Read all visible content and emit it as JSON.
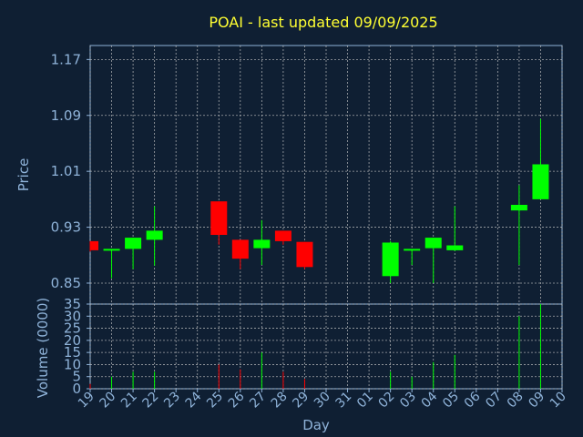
{
  "colors": {
    "background": "#0f1f33",
    "title": "#ffff33",
    "axis_text": "#8fb3d9",
    "grid": "#c8c8c8",
    "up": "#00ff00",
    "down": "#ff0000",
    "frame": "#8fb3d9"
  },
  "chart_data": [
    {
      "type": "candlestick",
      "title": "POAI - last updated 09/09/2025",
      "xlabel": "Day",
      "ylabel": "Price",
      "ylim": [
        0.82,
        1.19
      ],
      "yticks": [
        "0.85",
        "0.93",
        "1.01",
        "1.09",
        "1.17"
      ],
      "grid": true,
      "x_ticks": [
        "19",
        "20",
        "21",
        "22",
        "23",
        "24",
        "25",
        "26",
        "27",
        "28",
        "29",
        "30",
        "31",
        "01",
        "02",
        "03",
        "04",
        "05",
        "06",
        "07",
        "08",
        "09",
        "10"
      ],
      "candles": [
        {
          "x": "19",
          "open": 0.91,
          "high": 0.91,
          "low": 0.895,
          "close": 0.897
        },
        {
          "x": "20",
          "open": 0.897,
          "high": 0.899,
          "low": 0.857,
          "close": 0.899
        },
        {
          "x": "21",
          "open": 0.899,
          "high": 0.915,
          "low": 0.87,
          "close": 0.915
        },
        {
          "x": "22",
          "open": 0.912,
          "high": 0.96,
          "low": 0.875,
          "close": 0.925
        },
        {
          "x": "25",
          "open": 0.967,
          "high": 0.967,
          "low": 0.905,
          "close": 0.919
        },
        {
          "x": "26",
          "open": 0.912,
          "high": 0.912,
          "low": 0.87,
          "close": 0.885
        },
        {
          "x": "27",
          "open": 0.9,
          "high": 0.94,
          "low": 0.876,
          "close": 0.912
        },
        {
          "x": "28",
          "open": 0.925,
          "high": 0.925,
          "low": 0.905,
          "close": 0.91
        },
        {
          "x": "29",
          "open": 0.909,
          "high": 0.909,
          "low": 0.87,
          "close": 0.873
        },
        {
          "x": "02",
          "open": 0.86,
          "high": 0.91,
          "low": 0.85,
          "close": 0.908
        },
        {
          "x": "03",
          "open": 0.897,
          "high": 0.899,
          "low": 0.876,
          "close": 0.899
        },
        {
          "x": "04",
          "open": 0.9,
          "high": 0.915,
          "low": 0.85,
          "close": 0.915
        },
        {
          "x": "05",
          "open": 0.897,
          "high": 0.96,
          "low": 0.896,
          "close": 0.904
        },
        {
          "x": "08",
          "open": 0.954,
          "high": 0.99,
          "low": 0.876,
          "close": 0.962
        },
        {
          "x": "09",
          "open": 0.97,
          "high": 1.085,
          "low": 0.97,
          "close": 1.02
        }
      ]
    },
    {
      "type": "bar",
      "xlabel": "Day",
      "ylabel": "Volume (0000)",
      "ylim": [
        0,
        35
      ],
      "yticks": [
        "0",
        "5",
        "10",
        "15",
        "20",
        "25",
        "30",
        "35"
      ],
      "grid": true,
      "categories": [
        "19",
        "20",
        "21",
        "22",
        "23",
        "24",
        "25",
        "26",
        "27",
        "28",
        "29",
        "30",
        "31",
        "01",
        "02",
        "03",
        "04",
        "05",
        "06",
        "07",
        "08",
        "09",
        "10"
      ],
      "values": [
        2,
        5,
        7,
        7,
        0,
        0,
        10,
        8,
        15,
        7,
        4,
        0,
        0,
        0,
        7,
        5,
        11,
        14,
        0,
        0,
        30,
        35,
        0
      ],
      "directions": [
        "down",
        "up",
        "up",
        "up",
        "none",
        "none",
        "down",
        "down",
        "up",
        "down",
        "down",
        "none",
        "none",
        "none",
        "up",
        "up",
        "up",
        "up",
        "none",
        "none",
        "up",
        "up",
        "none"
      ]
    }
  ]
}
